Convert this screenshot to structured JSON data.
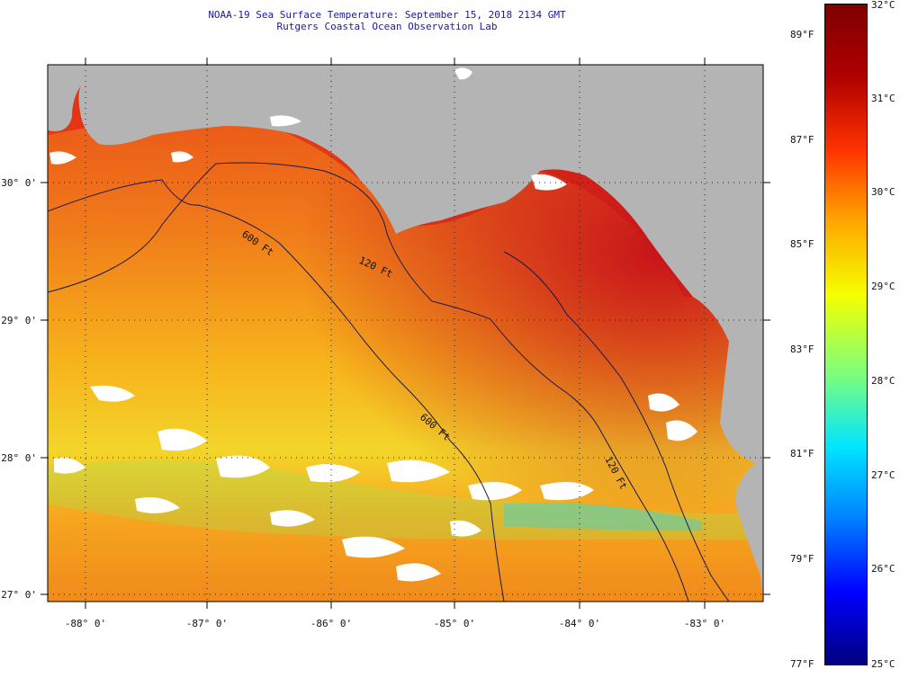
{
  "title": {
    "line1": "NOAA-19 Sea Surface Temperature:  September 15, 2018 2134 GMT",
    "line2": "Rutgers Coastal Ocean Observation Lab"
  },
  "map": {
    "longitude_ticks": [
      "-88° 0'",
      "-87° 0'",
      "-86° 0'",
      "-85° 0'",
      "-84° 0'",
      "-83° 0'"
    ],
    "latitude_ticks": [
      "30° 0'",
      "29° 0'",
      "28° 0'",
      "27° 0'"
    ],
    "contours": [
      {
        "label": "120 Ft",
        "depth_ft": 120
      },
      {
        "label": "600 Ft",
        "depth_ft": 600
      },
      {
        "label": "600 Ft",
        "depth_ft": 600
      },
      {
        "label": "120 Ft",
        "depth_ft": 120
      }
    ],
    "colors": {
      "land": "#b4b4b4",
      "cloud": "#ffffff",
      "warm_water": "#e8401a",
      "hot_water": "#c01010",
      "cool_water": "#f0e030",
      "contour": "#1a1a4a",
      "grid": "#222222"
    }
  },
  "colorbar": {
    "celsius": [
      "32°C",
      "31°C",
      "30°C",
      "29°C",
      "28°C",
      "27°C",
      "26°C",
      "25°C"
    ],
    "fahrenheit": [
      "89°F",
      "87°F",
      "85°F",
      "83°F",
      "81°F",
      "79°F",
      "77°F"
    ],
    "range_celsius": [
      25,
      32
    ],
    "colors": [
      "#00007f",
      "#0000ff",
      "#0080ff",
      "#00e5ff",
      "#7dff7a",
      "#f5ff00",
      "#ffa800",
      "#ff3300",
      "#b00000",
      "#7f0000"
    ]
  }
}
